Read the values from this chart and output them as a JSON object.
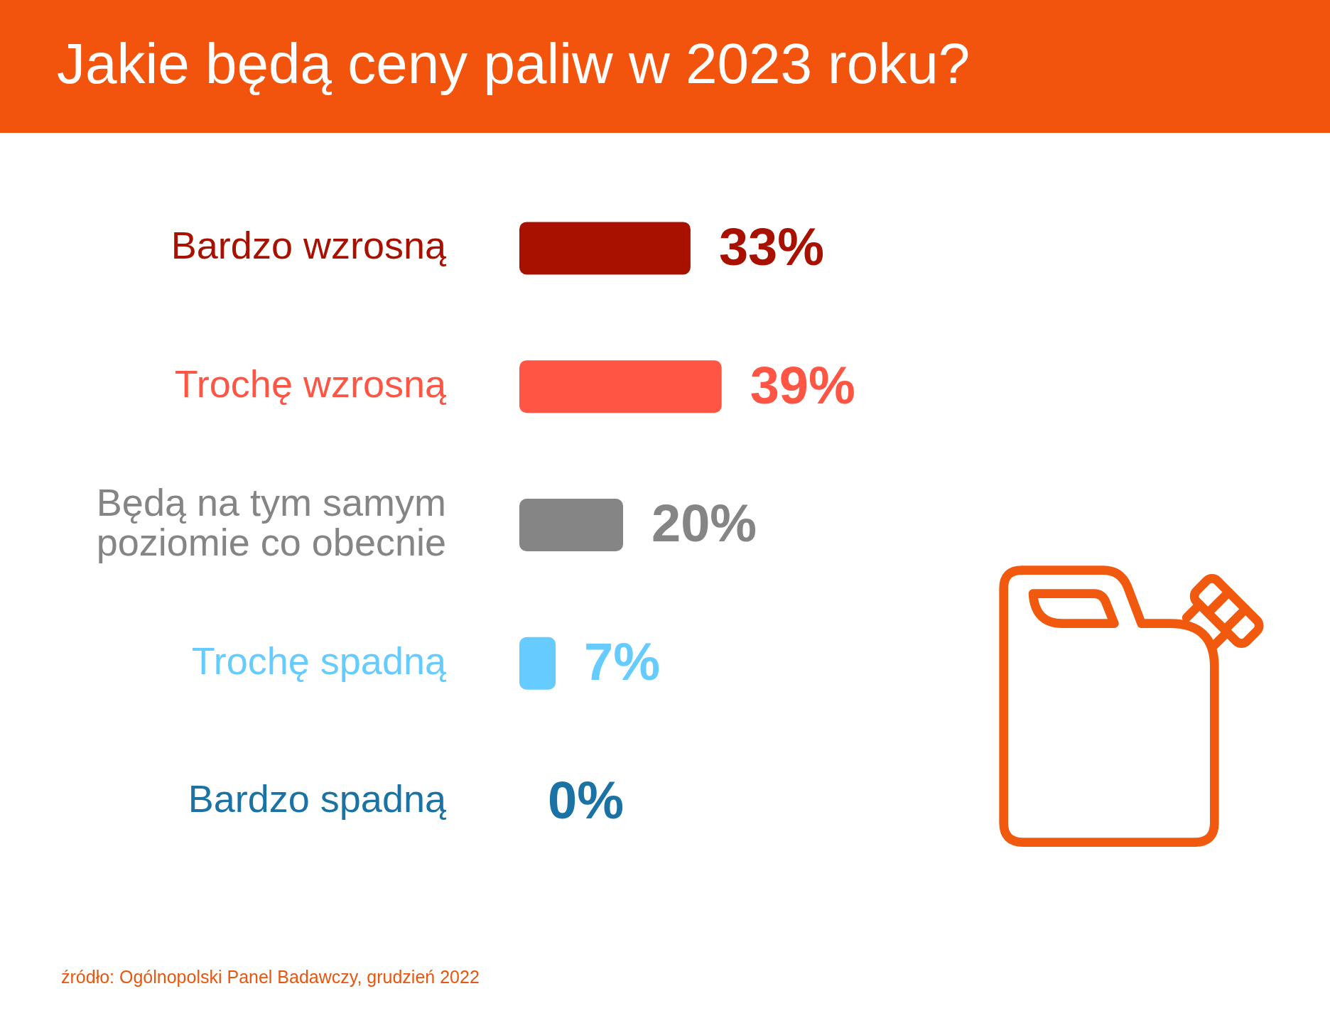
{
  "chart_data": {
    "type": "bar",
    "title": "Jakie będą ceny paliw w 2023 roku?",
    "orientation": "horizontal",
    "categories": [
      "Bardzo wzrosną",
      "Trochę wzrosną",
      "Będą na tym samym poziomie co obecnie",
      "Trochę spadną",
      "Bardzo spadną"
    ],
    "values": [
      33,
      39,
      20,
      7,
      0
    ],
    "colors": [
      "#a81000",
      "#ff5545",
      "#858585",
      "#66ccff",
      "#1b72a4"
    ],
    "value_labels": [
      "33%",
      "39%",
      "20%",
      "7%",
      "0%"
    ],
    "tick_labels": "y",
    "annotations": [
      "źródło: Ogólnopolski Panel Badawczy, grudzień 2022"
    ]
  }
}
